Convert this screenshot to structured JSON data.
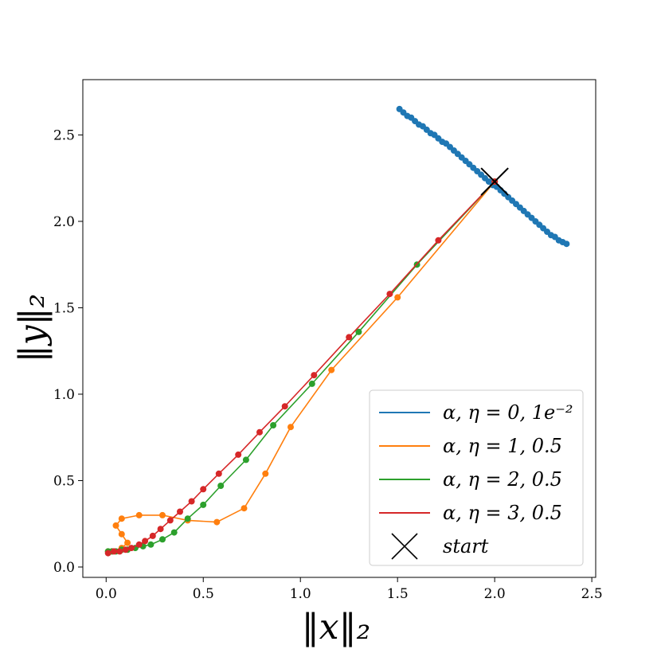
{
  "chart_data": {
    "type": "line",
    "xlabel": "‖x‖₂",
    "ylabel": "‖y‖₂",
    "xlim": [
      -0.12,
      2.52
    ],
    "ylim": [
      -0.06,
      2.82
    ],
    "xticks": [
      0.0,
      0.5,
      1.0,
      1.5,
      2.0,
      2.5
    ],
    "xtick_labels": [
      "0.0",
      "0.5",
      "1.0",
      "1.5",
      "2.0",
      "2.5"
    ],
    "yticks": [
      0.0,
      0.5,
      1.0,
      1.5,
      2.0,
      2.5
    ],
    "ytick_labels": [
      "0.0",
      "0.5",
      "1.0",
      "1.5",
      "2.0",
      "2.5"
    ],
    "grid": false,
    "legend_position": "lower-right",
    "series": [
      {
        "name": "α, η = 0, 1e⁻²",
        "color": "#1f77b4",
        "x": [
          1.51,
          1.53,
          1.55,
          1.57,
          1.59,
          1.61,
          1.63,
          1.65,
          1.67,
          1.69,
          1.71,
          1.73,
          1.75,
          1.77,
          1.79,
          1.81,
          1.83,
          1.85,
          1.87,
          1.89,
          1.91,
          1.93,
          1.95,
          1.97,
          1.99,
          2.01,
          2.03,
          2.05,
          2.07,
          2.09,
          2.11,
          2.13,
          2.15,
          2.17,
          2.19,
          2.21,
          2.23,
          2.25,
          2.27,
          2.29,
          2.31,
          2.33,
          2.35,
          2.37
        ],
        "y": [
          2.65,
          2.63,
          2.61,
          2.6,
          2.58,
          2.56,
          2.55,
          2.53,
          2.51,
          2.5,
          2.48,
          2.46,
          2.45,
          2.43,
          2.41,
          2.39,
          2.37,
          2.35,
          2.33,
          2.31,
          2.29,
          2.27,
          2.25,
          2.23,
          2.21,
          2.2,
          2.18,
          2.16,
          2.14,
          2.12,
          2.1,
          2.08,
          2.06,
          2.04,
          2.02,
          2.0,
          1.98,
          1.96,
          1.94,
          1.92,
          1.91,
          1.89,
          1.88,
          1.87
        ]
      },
      {
        "name": "α, η = 1, 0.5",
        "color": "#ff7f0e",
        "x": [
          2.0,
          1.5,
          1.16,
          0.95,
          0.82,
          0.71,
          0.57,
          0.42,
          0.29,
          0.17,
          0.08,
          0.05,
          0.08,
          0.11,
          0.08,
          0.03,
          0.01
        ],
        "y": [
          2.23,
          1.56,
          1.14,
          0.81,
          0.54,
          0.34,
          0.26,
          0.27,
          0.3,
          0.3,
          0.28,
          0.24,
          0.19,
          0.14,
          0.11,
          0.09,
          0.09
        ]
      },
      {
        "name": "α, η = 2, 0.5",
        "color": "#2ca02c",
        "x": [
          2.0,
          1.6,
          1.3,
          1.06,
          0.86,
          0.72,
          0.59,
          0.5,
          0.42,
          0.35,
          0.29,
          0.23,
          0.19,
          0.15,
          0.11,
          0.08,
          0.05,
          0.03,
          0.01
        ],
        "y": [
          2.23,
          1.75,
          1.36,
          1.06,
          0.82,
          0.62,
          0.47,
          0.36,
          0.28,
          0.2,
          0.16,
          0.13,
          0.12,
          0.11,
          0.1,
          0.1,
          0.09,
          0.09,
          0.09
        ]
      },
      {
        "name": "α, η = 3, 0.5",
        "color": "#d62728",
        "x": [
          2.0,
          1.71,
          1.46,
          1.25,
          1.07,
          0.92,
          0.79,
          0.68,
          0.58,
          0.5,
          0.44,
          0.38,
          0.33,
          0.28,
          0.24,
          0.2,
          0.17,
          0.13,
          0.1,
          0.07,
          0.04,
          0.01
        ],
        "y": [
          2.23,
          1.89,
          1.58,
          1.33,
          1.11,
          0.93,
          0.78,
          0.65,
          0.54,
          0.45,
          0.38,
          0.32,
          0.27,
          0.22,
          0.18,
          0.15,
          0.13,
          0.11,
          0.1,
          0.09,
          0.09,
          0.08
        ]
      }
    ],
    "start": {
      "name": "start",
      "x": 2.0,
      "y": 2.23,
      "color": "#000000"
    }
  }
}
